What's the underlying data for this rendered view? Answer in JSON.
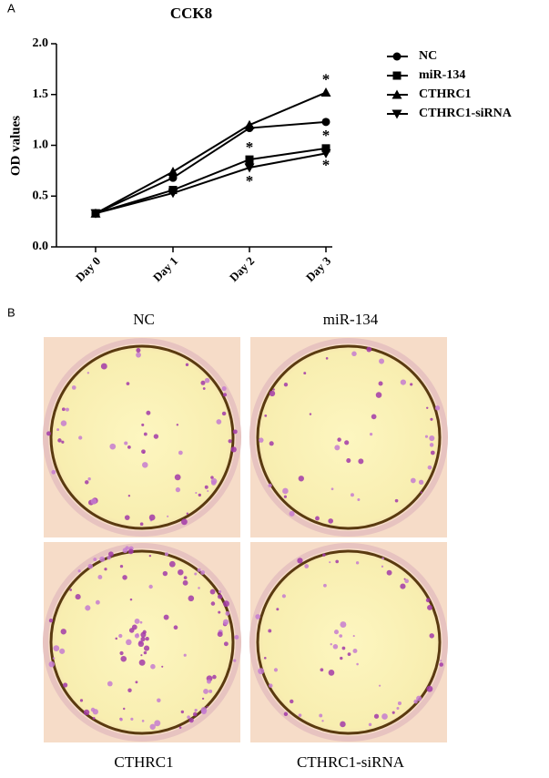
{
  "panel_labels": [
    "A",
    "B"
  ],
  "chart_data": {
    "type": "line",
    "title": "CCK8",
    "y_label": "OD values",
    "categories": [
      "Day 0",
      "Day 1",
      "Day 2",
      "Day 3"
    ],
    "series": [
      {
        "name": "NC",
        "color": "#000000",
        "marker": "circle",
        "values": [
          0.33,
          0.68,
          1.17,
          1.23
        ]
      },
      {
        "name": "miR-134",
        "color": "#000000",
        "marker": "square",
        "values": [
          0.33,
          0.56,
          0.86,
          0.97
        ]
      },
      {
        "name": "CTHRC1",
        "color": "#000000",
        "marker": "triangle",
        "values": [
          0.33,
          0.74,
          1.2,
          1.52
        ]
      },
      {
        "name": "CTHRC1-siRNA",
        "color": "#000000",
        "marker": "triangle-down",
        "values": [
          0.33,
          0.53,
          0.78,
          0.92
        ]
      }
    ],
    "ylim": [
      0,
      2
    ],
    "yticks": [
      {
        "value": 0,
        "label": "0.0"
      },
      {
        "value": 0.5,
        "label": "0.5"
      },
      {
        "value": 1,
        "label": "1.0"
      },
      {
        "value": 1.5,
        "label": "1.5"
      },
      {
        "value": 2,
        "label": "2.0"
      }
    ],
    "annotations": [
      "*",
      "*",
      "*",
      "*",
      "*"
    ]
  },
  "wells": [
    "NC",
    "miR-134",
    "CTHRC1",
    "CTHRC1-siRNA"
  ]
}
